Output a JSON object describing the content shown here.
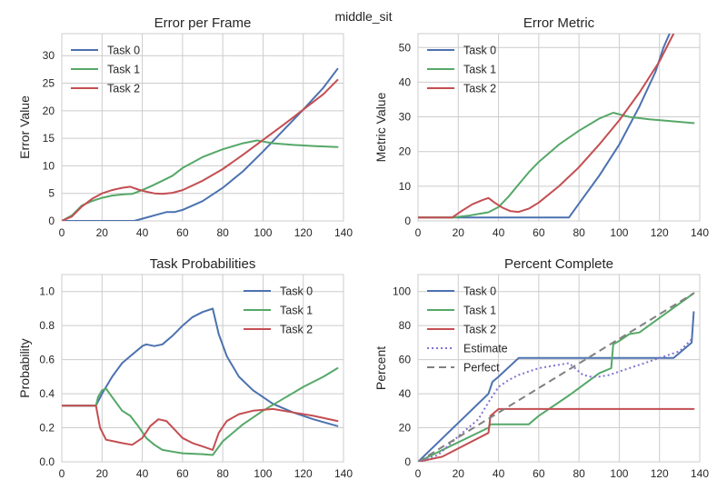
{
  "figure": {
    "suptitle": "middle_sit"
  },
  "colors": {
    "task0": "#4c72b0",
    "task1": "#55a868",
    "task2": "#c44e52",
    "estimate": "#8172d2",
    "perfect": "#808080",
    "grid": "#cccccc"
  },
  "chart_data": [
    {
      "type": "line",
      "title": "Error per Frame",
      "xlabel": "",
      "ylabel": "Error Value",
      "xlim": [
        0,
        140
      ],
      "ylim": [
        0,
        34
      ],
      "xticks": [
        0,
        20,
        40,
        60,
        80,
        100,
        120,
        140
      ],
      "yticks": [
        0,
        5,
        10,
        15,
        20,
        25,
        30
      ],
      "legend": "top-left",
      "series": [
        {
          "name": "Task 0",
          "color": "#4c72b0",
          "points": [
            [
              0,
              0
            ],
            [
              20,
              0
            ],
            [
              36,
              0
            ],
            [
              42,
              0.6
            ],
            [
              48,
              1.2
            ],
            [
              52,
              1.6
            ],
            [
              56,
              1.6
            ],
            [
              60,
              2
            ],
            [
              70,
              3.6
            ],
            [
              80,
              6
            ],
            [
              90,
              9
            ],
            [
              100,
              12.6
            ],
            [
              110,
              16.4
            ],
            [
              120,
              20.2
            ],
            [
              130,
              24.2
            ],
            [
              137,
              27.6
            ]
          ]
        },
        {
          "name": "Task 1",
          "color": "#55a868",
          "points": [
            [
              0,
              0
            ],
            [
              5,
              1
            ],
            [
              10,
              2.8
            ],
            [
              15,
              3.6
            ],
            [
              20,
              4.2
            ],
            [
              25,
              4.6
            ],
            [
              30,
              4.8
            ],
            [
              35,
              4.9
            ],
            [
              40,
              5.6
            ],
            [
              45,
              6.4
            ],
            [
              50,
              7.3
            ],
            [
              55,
              8.2
            ],
            [
              60,
              9.6
            ],
            [
              70,
              11.6
            ],
            [
              80,
              13
            ],
            [
              90,
              14.1
            ],
            [
              97,
              14.6
            ],
            [
              105,
              14.1
            ],
            [
              115,
              13.8
            ],
            [
              125,
              13.6
            ],
            [
              137,
              13.4
            ]
          ]
        },
        {
          "name": "Task 2",
          "color": "#c44e52",
          "points": [
            [
              0,
              0
            ],
            [
              5,
              0.8
            ],
            [
              10,
              2.6
            ],
            [
              15,
              4
            ],
            [
              20,
              5
            ],
            [
              25,
              5.6
            ],
            [
              30,
              6
            ],
            [
              34,
              6.2
            ],
            [
              38,
              5.7
            ],
            [
              42,
              5.3
            ],
            [
              46,
              5
            ],
            [
              50,
              4.9
            ],
            [
              55,
              5.1
            ],
            [
              60,
              5.6
            ],
            [
              70,
              7.3
            ],
            [
              80,
              9.4
            ],
            [
              90,
              12
            ],
            [
              100,
              14.7
            ],
            [
              110,
              17.4
            ],
            [
              120,
              20.2
            ],
            [
              130,
              23
            ],
            [
              137,
              25.6
            ]
          ]
        }
      ]
    },
    {
      "type": "line",
      "title": "Error Metric",
      "xlabel": "",
      "ylabel": "Metric Value",
      "xlim": [
        0,
        140
      ],
      "ylim": [
        0,
        54
      ],
      "xticks": [
        0,
        20,
        40,
        60,
        80,
        100,
        120,
        140
      ],
      "yticks": [
        0,
        10,
        20,
        30,
        40,
        50
      ],
      "legend": "top-left",
      "series": [
        {
          "name": "Task 0",
          "color": "#4c72b0",
          "points": [
            [
              0,
              1
            ],
            [
              75,
              1
            ],
            [
              80,
              5
            ],
            [
              90,
              13
            ],
            [
              100,
              22
            ],
            [
              110,
              33
            ],
            [
              118,
              43
            ],
            [
              122,
              50
            ],
            [
              125,
              54
            ]
          ]
        },
        {
          "name": "Task 1",
          "color": "#55a868",
          "points": [
            [
              0,
              1
            ],
            [
              17,
              1
            ],
            [
              25,
              1.5
            ],
            [
              30,
              2
            ],
            [
              35,
              2.5
            ],
            [
              40,
              4
            ],
            [
              45,
              7
            ],
            [
              50,
              10.5
            ],
            [
              55,
              14
            ],
            [
              60,
              17
            ],
            [
              70,
              22
            ],
            [
              80,
              26
            ],
            [
              90,
              29.5
            ],
            [
              97,
              31.2
            ],
            [
              105,
              30
            ],
            [
              115,
              29.3
            ],
            [
              125,
              28.8
            ],
            [
              137,
              28.2
            ]
          ]
        },
        {
          "name": "Task 2",
          "color": "#c44e52",
          "points": [
            [
              0,
              1
            ],
            [
              17,
              1
            ],
            [
              22,
              3
            ],
            [
              27,
              4.8
            ],
            [
              32,
              6
            ],
            [
              35,
              6.6
            ],
            [
              38,
              5.3
            ],
            [
              42,
              3.8
            ],
            [
              46,
              2.8
            ],
            [
              50,
              2.6
            ],
            [
              55,
              3.5
            ],
            [
              60,
              5.3
            ],
            [
              70,
              10
            ],
            [
              80,
              15.5
            ],
            [
              90,
              22
            ],
            [
              100,
              29
            ],
            [
              110,
              37
            ],
            [
              120,
              46
            ],
            [
              127,
              54
            ]
          ]
        }
      ]
    },
    {
      "type": "line",
      "title": "Task Probabilities",
      "xlabel": "",
      "ylabel": "Probability",
      "xlim": [
        0,
        140
      ],
      "ylim": [
        0,
        1.1
      ],
      "xticks": [
        0,
        20,
        40,
        60,
        80,
        100,
        120,
        140
      ],
      "yticks": [
        0.0,
        0.2,
        0.4,
        0.6,
        0.8,
        1.0
      ],
      "yticklabels": [
        "0.0",
        "0.2",
        "0.4",
        "0.6",
        "0.8",
        "1.0"
      ],
      "legend": "top-right",
      "series": [
        {
          "name": "Task 0",
          "color": "#4c72b0",
          "points": [
            [
              0,
              0.33
            ],
            [
              17,
              0.33
            ],
            [
              20,
              0.4
            ],
            [
              22,
              0.44
            ],
            [
              25,
              0.5
            ],
            [
              30,
              0.58
            ],
            [
              35,
              0.63
            ],
            [
              40,
              0.68
            ],
            [
              42,
              0.69
            ],
            [
              46,
              0.68
            ],
            [
              50,
              0.69
            ],
            [
              55,
              0.74
            ],
            [
              60,
              0.8
            ],
            [
              65,
              0.85
            ],
            [
              70,
              0.88
            ],
            [
              75,
              0.9
            ],
            [
              78,
              0.75
            ],
            [
              82,
              0.62
            ],
            [
              88,
              0.5
            ],
            [
              95,
              0.42
            ],
            [
              105,
              0.34
            ],
            [
              115,
              0.29
            ],
            [
              125,
              0.25
            ],
            [
              137,
              0.21
            ]
          ]
        },
        {
          "name": "Task 1",
          "color": "#55a868",
          "points": [
            [
              0,
              0.33
            ],
            [
              17,
              0.33
            ],
            [
              18,
              0.38
            ],
            [
              20,
              0.42
            ],
            [
              22,
              0.43
            ],
            [
              25,
              0.38
            ],
            [
              30,
              0.3
            ],
            [
              34,
              0.27
            ],
            [
              38,
              0.21
            ],
            [
              42,
              0.14
            ],
            [
              46,
              0.1
            ],
            [
              50,
              0.07
            ],
            [
              55,
              0.06
            ],
            [
              60,
              0.05
            ],
            [
              70,
              0.045
            ],
            [
              75,
              0.04
            ],
            [
              80,
              0.12
            ],
            [
              90,
              0.22
            ],
            [
              100,
              0.3
            ],
            [
              110,
              0.37
            ],
            [
              120,
              0.44
            ],
            [
              130,
              0.5
            ],
            [
              137,
              0.55
            ]
          ]
        },
        {
          "name": "Task 2",
          "color": "#c44e52",
          "points": [
            [
              0,
              0.33
            ],
            [
              17,
              0.33
            ],
            [
              19,
              0.2
            ],
            [
              22,
              0.13
            ],
            [
              26,
              0.12
            ],
            [
              30,
              0.11
            ],
            [
              35,
              0.1
            ],
            [
              40,
              0.14
            ],
            [
              44,
              0.21
            ],
            [
              48,
              0.25
            ],
            [
              52,
              0.24
            ],
            [
              56,
              0.19
            ],
            [
              60,
              0.14
            ],
            [
              65,
              0.11
            ],
            [
              70,
              0.09
            ],
            [
              75,
              0.07
            ],
            [
              78,
              0.17
            ],
            [
              82,
              0.24
            ],
            [
              88,
              0.28
            ],
            [
              95,
              0.3
            ],
            [
              105,
              0.31
            ],
            [
              115,
              0.29
            ],
            [
              125,
              0.27
            ],
            [
              137,
              0.24
            ]
          ]
        }
      ]
    },
    {
      "type": "line",
      "title": "Percent Complete",
      "xlabel": "",
      "ylabel": "Percent",
      "xlim": [
        0,
        140
      ],
      "ylim": [
        0,
        110
      ],
      "xticks": [
        0,
        20,
        40,
        60,
        80,
        100,
        120,
        140
      ],
      "yticks": [
        0,
        20,
        40,
        60,
        80,
        100
      ],
      "legend": "top-left",
      "series": [
        {
          "name": "Task 0",
          "color": "#4c72b0",
          "dash": "solid",
          "points": [
            [
              0,
              0
            ],
            [
              35,
              40
            ],
            [
              37,
              47
            ],
            [
              40,
              50
            ],
            [
              50,
              61
            ],
            [
              55,
              61
            ],
            [
              75,
              61
            ],
            [
              100,
              61
            ],
            [
              127,
              61
            ],
            [
              130,
              64
            ],
            [
              136,
              70
            ],
            [
              137,
              88
            ]
          ]
        },
        {
          "name": "Task 1",
          "color": "#55a868",
          "dash": "solid",
          "points": [
            [
              0,
              0
            ],
            [
              35,
              20
            ],
            [
              36,
              22
            ],
            [
              40,
              22
            ],
            [
              55,
              22
            ],
            [
              60,
              27
            ],
            [
              75,
              39
            ],
            [
              90,
              52
            ],
            [
              96,
              55
            ],
            [
              97,
              69
            ],
            [
              100,
              71
            ],
            [
              105,
              75
            ],
            [
              110,
              76
            ],
            [
              137,
              99
            ]
          ]
        },
        {
          "name": "Task 2",
          "color": "#c44e52",
          "dash": "solid",
          "points": [
            [
              0,
              0
            ],
            [
              12,
              3
            ],
            [
              35,
              17
            ],
            [
              36,
              27
            ],
            [
              37,
              28
            ],
            [
              40,
              31
            ],
            [
              60,
              31
            ],
            [
              80,
              31
            ],
            [
              100,
              31
            ],
            [
              137,
              31
            ]
          ]
        },
        {
          "name": "Estimate",
          "color": "#8172d2",
          "dash": "dotted",
          "points": [
            [
              0,
              0
            ],
            [
              10,
              4
            ],
            [
              20,
              15
            ],
            [
              30,
              25
            ],
            [
              35,
              35
            ],
            [
              40,
              44
            ],
            [
              45,
              48
            ],
            [
              50,
              51
            ],
            [
              55,
              53
            ],
            [
              60,
              55
            ],
            [
              65,
              56
            ],
            [
              70,
              57
            ],
            [
              75,
              58
            ],
            [
              78,
              55
            ],
            [
              82,
              51
            ],
            [
              86,
              50
            ],
            [
              90,
              50
            ],
            [
              95,
              51
            ],
            [
              100,
              53
            ],
            [
              110,
              57
            ],
            [
              120,
              61
            ],
            [
              130,
              65
            ],
            [
              136,
              72
            ]
          ]
        },
        {
          "name": "Perfect",
          "color": "#808080",
          "dash": "dashed",
          "points": [
            [
              0,
              0
            ],
            [
              137,
              99
            ]
          ]
        }
      ]
    }
  ]
}
